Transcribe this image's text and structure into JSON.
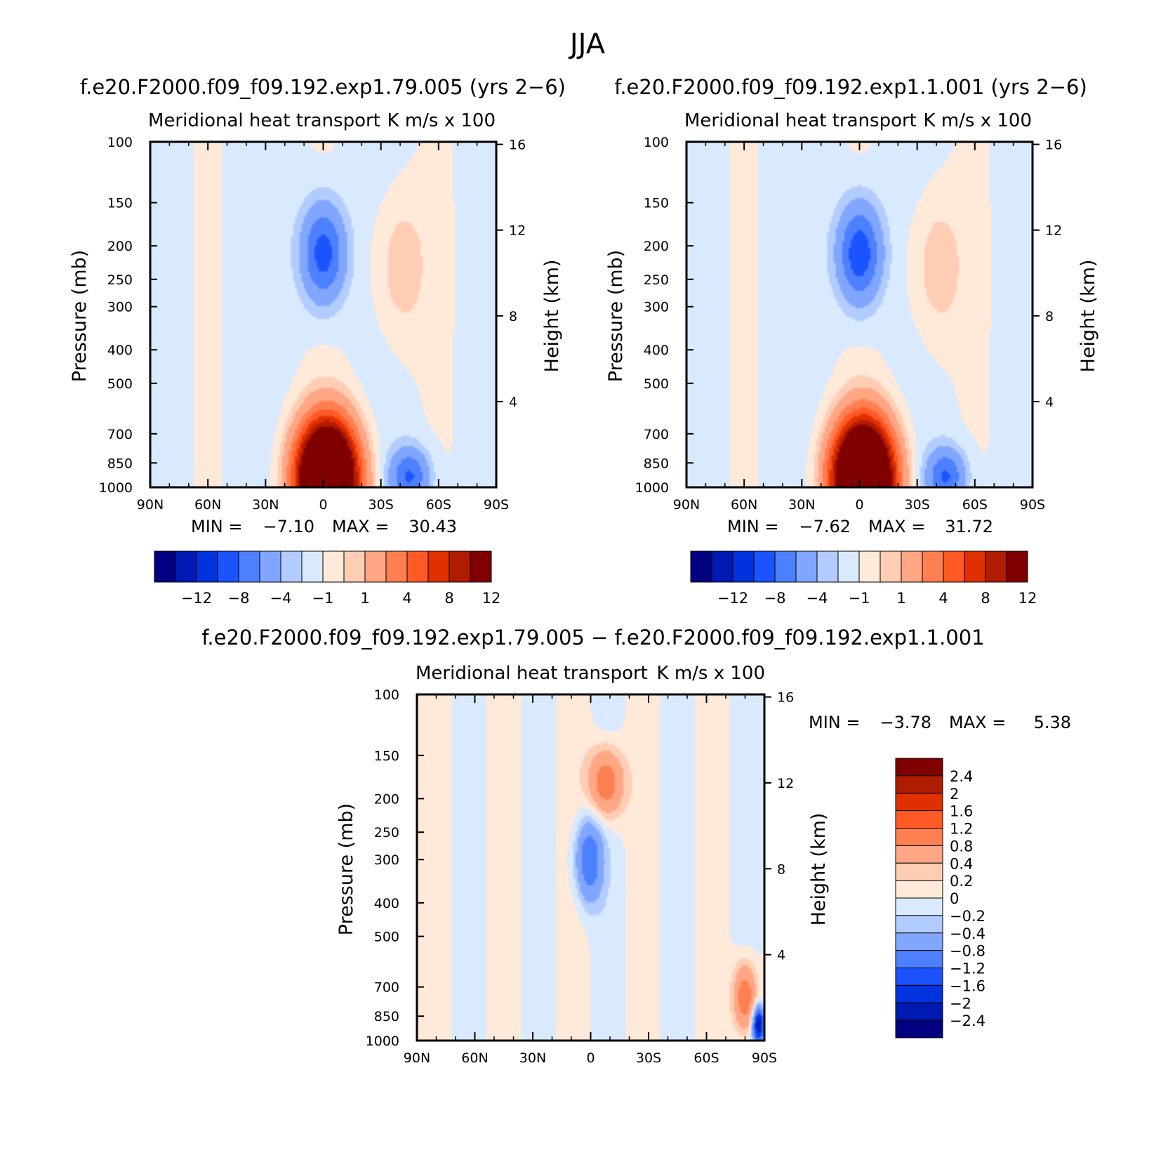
{
  "figure": {
    "season": "JJA",
    "run1": "f.e20.F2000.f09_f09.192.exp1.79.005 (yrs 2−6)",
    "run2": "f.e20.F2000.f09_f09.192.exp1.1.001 (yrs 2−6)",
    "diff_title": "f.e20.F2000.f09_f09.192.exp1.79.005 − f.e20.F2000.f09_f09.192.exp1.1.001"
  },
  "colors": {
    "main": [
      "#000080",
      "#0019b3",
      "#0033dd",
      "#1a53ff",
      "#4d80ff",
      "#80a6ff",
      "#b3ccff",
      "#d9eaff",
      "#ffe9d9",
      "#ffcdb3",
      "#ffa685",
      "#ff7f50",
      "#ff5a26",
      "#e03000",
      "#b01c00",
      "#800000"
    ],
    "diff": [
      "#000080",
      "#0019b3",
      "#0033dd",
      "#1a53ff",
      "#4d80ff",
      "#80a6ff",
      "#b3ccff",
      "#d9eaff",
      "#ffe9d9",
      "#ffcdb3",
      "#ffa685",
      "#ff7f50",
      "#ff5a26",
      "#e03000",
      "#b01c00",
      "#800000"
    ]
  },
  "chart_data": [
    {
      "type": "heatmap",
      "title": "Meridional heat transport",
      "units": "K m/s x 100",
      "xlabel": "",
      "ylabel": "Pressure (mb)",
      "y2label": "Height (km)",
      "x_ticks": [
        "90N",
        "60N",
        "30N",
        "0",
        "30S",
        "60S",
        "90S"
      ],
      "x_range": [
        90,
        -90
      ],
      "y_ticks": [
        100,
        150,
        200,
        250,
        300,
        400,
        500,
        700,
        850,
        1000
      ],
      "y_scale": "log",
      "y_range": [
        100,
        1000
      ],
      "y2_ticks": [
        16,
        12,
        8,
        4
      ],
      "min_label": "MIN =",
      "min_value": "−7.10",
      "max_label": "MAX =",
      "max_value": "30.43",
      "levels": [
        -12,
        -10,
        -8,
        -6,
        -4,
        -2,
        -1,
        0,
        1,
        2,
        4,
        6,
        8,
        10,
        12
      ],
      "colorbar_labels": [
        "−12",
        "−8",
        "−4",
        "−1",
        "1",
        "4",
        "8",
        "12"
      ],
      "features": [
        {
          "kind": "max",
          "lat": -2,
          "p": 950,
          "value": 30.43
        },
        {
          "kind": "min",
          "lat": 0,
          "p": 210,
          "value": -7.1
        },
        {
          "kind": "positive",
          "lat": -40,
          "p": 230,
          "value": 2
        },
        {
          "kind": "negative",
          "lat": -45,
          "p": 930,
          "value": -6
        }
      ]
    },
    {
      "type": "heatmap",
      "title": "Meridional heat transport",
      "units": "K m/s x 100",
      "xlabel": "",
      "ylabel": "Pressure (mb)",
      "y2label": "Height (km)",
      "x_ticks": [
        "90N",
        "60N",
        "30N",
        "0",
        "30S",
        "60S",
        "90S"
      ],
      "x_range": [
        90,
        -90
      ],
      "y_ticks": [
        100,
        150,
        200,
        250,
        300,
        400,
        500,
        700,
        850,
        1000
      ],
      "y_scale": "log",
      "y_range": [
        100,
        1000
      ],
      "y2_ticks": [
        16,
        12,
        8,
        4
      ],
      "min_label": "MIN =",
      "min_value": "−7.62",
      "max_label": "MAX =",
      "max_value": "31.72",
      "levels": [
        -12,
        -10,
        -8,
        -6,
        -4,
        -2,
        -1,
        0,
        1,
        2,
        4,
        6,
        8,
        10,
        12
      ],
      "colorbar_labels": [
        "−12",
        "−8",
        "−4",
        "−1",
        "1",
        "4",
        "8",
        "12"
      ],
      "features": [
        {
          "kind": "max",
          "lat": -2,
          "p": 950,
          "value": 31.72
        },
        {
          "kind": "min",
          "lat": 0,
          "p": 210,
          "value": -7.62
        },
        {
          "kind": "positive",
          "lat": -40,
          "p": 230,
          "value": 2
        },
        {
          "kind": "negative",
          "lat": -45,
          "p": 930,
          "value": -6
        }
      ]
    },
    {
      "type": "heatmap",
      "title": "Meridional heat transport",
      "units": "K m/s x 100",
      "xlabel": "",
      "ylabel": "Pressure (mb)",
      "y2label": "Height (km)",
      "x_ticks": [
        "90N",
        "60N",
        "30N",
        "0",
        "30S",
        "60S",
        "90S"
      ],
      "x_range": [
        90,
        -90
      ],
      "y_ticks": [
        100,
        150,
        200,
        250,
        300,
        400,
        500,
        700,
        850,
        1000
      ],
      "y_scale": "log",
      "y_range": [
        100,
        1000
      ],
      "y2_ticks": [
        16,
        12,
        8,
        4
      ],
      "min_label": "MIN =",
      "min_value": "−3.78",
      "max_label": "MAX =",
      "max_value": "5.38",
      "levels": [
        -2.4,
        -2,
        -1.6,
        -1.2,
        -0.8,
        -0.4,
        -0.2,
        0,
        0.2,
        0.4,
        0.8,
        1.2,
        1.6,
        2,
        2.4
      ],
      "colorbar_labels": [
        "2.4",
        "2",
        "1.6",
        "1.2",
        "0.8",
        "0.4",
        "0.2",
        "0",
        "−0.2",
        "−0.4",
        "−0.8",
        "−1.2",
        "−1.6",
        "−2",
        "−2.4"
      ],
      "features": [
        {
          "kind": "positive",
          "lat": -8,
          "p": 180,
          "value": 1.2
        },
        {
          "kind": "negative",
          "lat": 1,
          "p": 300,
          "value": -1.2
        },
        {
          "kind": "positive",
          "lat": -80,
          "p": 750,
          "value": 1.2
        },
        {
          "kind": "negative",
          "lat": -87,
          "p": 900,
          "value": -2.4
        }
      ]
    }
  ]
}
